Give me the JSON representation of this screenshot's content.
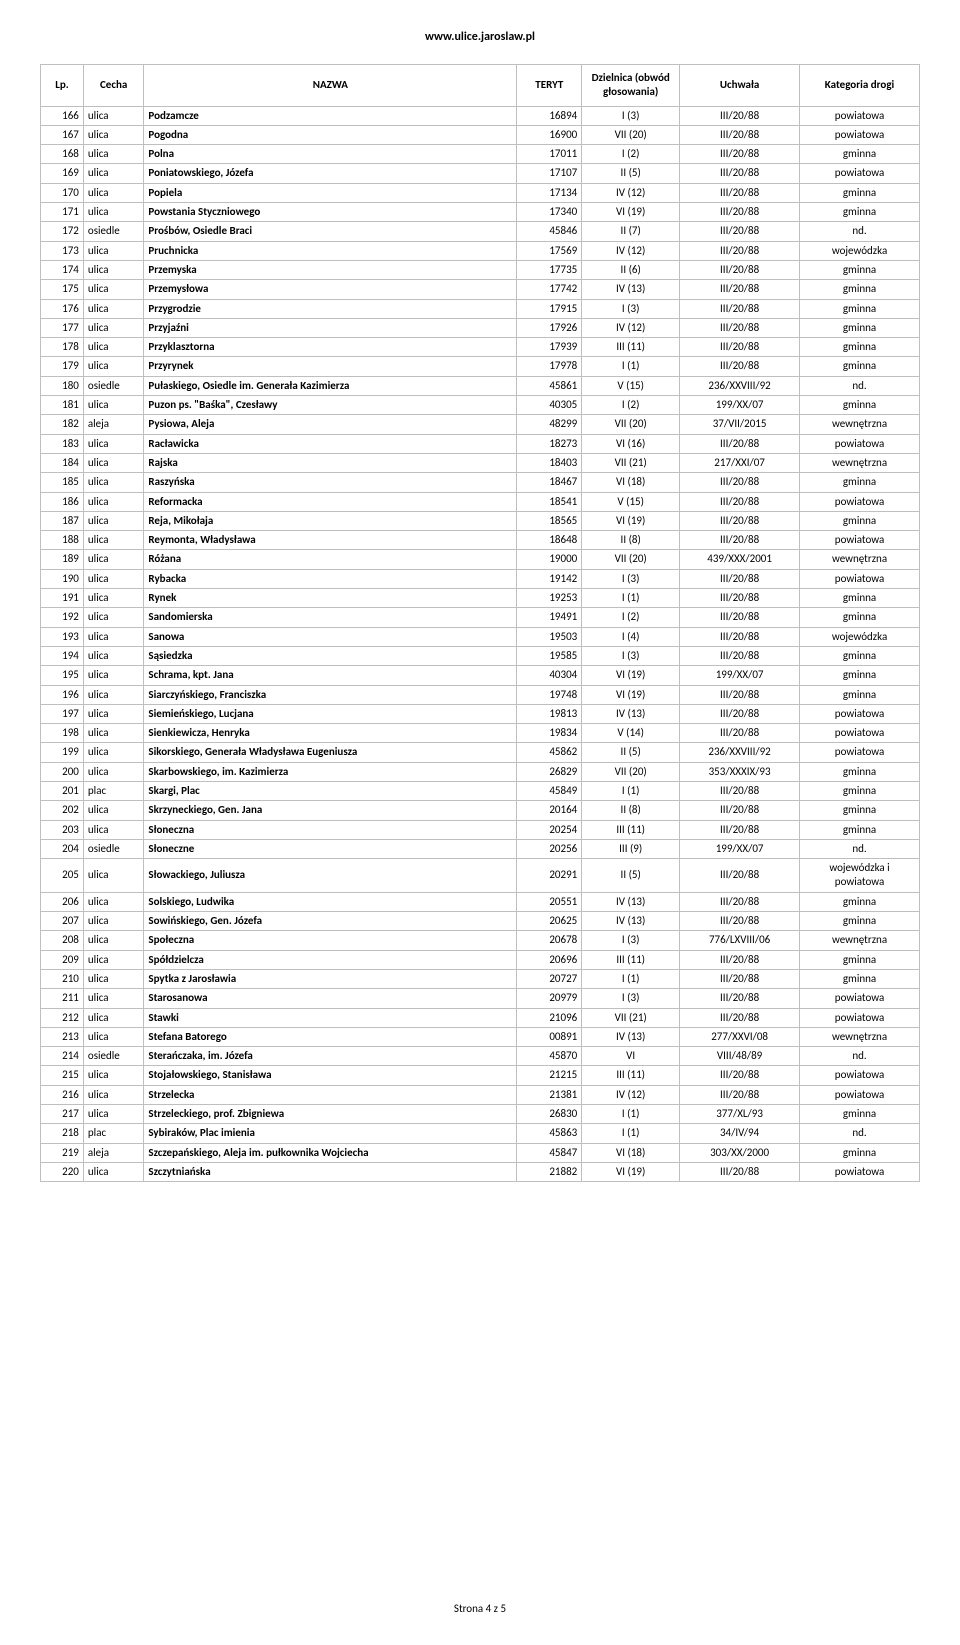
{
  "header_url": "www.ulice.jaroslaw.pl",
  "footer": "Strona 4 z 5",
  "columns": {
    "lp": "Lp.",
    "cecha": "Cecha",
    "nazwa": "NAZWA",
    "teryt": "TERYT",
    "dzielnica": "Dzielnica (obwód głosowania)",
    "uchwala": "Uchwała",
    "kategoria": "Kategoria drogi"
  },
  "rows": [
    {
      "lp": "166",
      "cecha": "ulica",
      "nazwa": "Podzamcze",
      "teryt": "16894",
      "dziel": "I (3)",
      "uchw": "III/20/88",
      "kat": "powiatowa"
    },
    {
      "lp": "167",
      "cecha": "ulica",
      "nazwa": "Pogodna",
      "teryt": "16900",
      "dziel": "VII (20)",
      "uchw": "III/20/88",
      "kat": "powiatowa"
    },
    {
      "lp": "168",
      "cecha": "ulica",
      "nazwa": "Polna",
      "teryt": "17011",
      "dziel": "I (2)",
      "uchw": "III/20/88",
      "kat": "gminna"
    },
    {
      "lp": "169",
      "cecha": "ulica",
      "nazwa": "Poniatowskiego, Józefa",
      "teryt": "17107",
      "dziel": "II (5)",
      "uchw": "III/20/88",
      "kat": "powiatowa"
    },
    {
      "lp": "170",
      "cecha": "ulica",
      "nazwa": "Popiela",
      "teryt": "17134",
      "dziel": "IV (12)",
      "uchw": "III/20/88",
      "kat": "gminna"
    },
    {
      "lp": "171",
      "cecha": "ulica",
      "nazwa": "Powstania Styczniowego",
      "teryt": "17340",
      "dziel": "VI (19)",
      "uchw": "III/20/88",
      "kat": "gminna"
    },
    {
      "lp": "172",
      "cecha": "osiedle",
      "nazwa": "Prośbów, Osiedle Braci",
      "teryt": "45846",
      "dziel": "II (7)",
      "uchw": "III/20/88",
      "kat": "nd."
    },
    {
      "lp": "173",
      "cecha": "ulica",
      "nazwa": "Pruchnicka",
      "teryt": "17569",
      "dziel": "IV (12)",
      "uchw": "III/20/88",
      "kat": "wojewódzka"
    },
    {
      "lp": "174",
      "cecha": "ulica",
      "nazwa": "Przemyska",
      "teryt": "17735",
      "dziel": "II (6)",
      "uchw": "III/20/88",
      "kat": "gminna"
    },
    {
      "lp": "175",
      "cecha": "ulica",
      "nazwa": "Przemysłowa",
      "teryt": "17742",
      "dziel": "IV (13)",
      "uchw": "III/20/88",
      "kat": "gminna"
    },
    {
      "lp": "176",
      "cecha": "ulica",
      "nazwa": "Przygrodzie",
      "teryt": "17915",
      "dziel": "I (3)",
      "uchw": "III/20/88",
      "kat": "gminna"
    },
    {
      "lp": "177",
      "cecha": "ulica",
      "nazwa": "Przyjaźni",
      "teryt": "17926",
      "dziel": "IV (12)",
      "uchw": "III/20/88",
      "kat": "gminna"
    },
    {
      "lp": "178",
      "cecha": "ulica",
      "nazwa": "Przyklasztorna",
      "teryt": "17939",
      "dziel": "III (11)",
      "uchw": "III/20/88",
      "kat": "gminna"
    },
    {
      "lp": "179",
      "cecha": "ulica",
      "nazwa": "Przyrynek",
      "teryt": "17978",
      "dziel": "I (1)",
      "uchw": "III/20/88",
      "kat": "gminna"
    },
    {
      "lp": "180",
      "cecha": "osiedle",
      "nazwa": "Pułaskiego, Osiedle im. Generała Kazimierza",
      "teryt": "45861",
      "dziel": "V (15)",
      "uchw": "236/XXVIII/92",
      "kat": "nd."
    },
    {
      "lp": "181",
      "cecha": "ulica",
      "nazwa": "Puzon ps. \"Baśka\", Czesławy",
      "teryt": "40305",
      "dziel": "I (2)",
      "uchw": "199/XX/07",
      "kat": "gminna"
    },
    {
      "lp": "182",
      "cecha": "aleja",
      "nazwa": "Pysiowa, Aleja",
      "teryt": "48299",
      "dziel": "VII (20)",
      "uchw": "37/VII/2015",
      "kat": "wewnętrzna"
    },
    {
      "lp": "183",
      "cecha": "ulica",
      "nazwa": "Racławicka",
      "teryt": "18273",
      "dziel": "VI (16)",
      "uchw": "III/20/88",
      "kat": "powiatowa"
    },
    {
      "lp": "184",
      "cecha": "ulica",
      "nazwa": "Rajska",
      "teryt": "18403",
      "dziel": "VII (21)",
      "uchw": "217/XXI/07",
      "kat": "wewnętrzna"
    },
    {
      "lp": "185",
      "cecha": "ulica",
      "nazwa": "Raszyńska",
      "teryt": "18467",
      "dziel": "VI (18)",
      "uchw": "III/20/88",
      "kat": "gminna"
    },
    {
      "lp": "186",
      "cecha": "ulica",
      "nazwa": "Reformacka",
      "teryt": "18541",
      "dziel": "V (15)",
      "uchw": "III/20/88",
      "kat": "powiatowa"
    },
    {
      "lp": "187",
      "cecha": "ulica",
      "nazwa": "Reja, Mikołaja",
      "teryt": "18565",
      "dziel": "VI (19)",
      "uchw": "III/20/88",
      "kat": "gminna"
    },
    {
      "lp": "188",
      "cecha": "ulica",
      "nazwa": "Reymonta, Władysława",
      "teryt": "18648",
      "dziel": "II (8)",
      "uchw": "III/20/88",
      "kat": "powiatowa"
    },
    {
      "lp": "189",
      "cecha": "ulica",
      "nazwa": "Różana",
      "teryt": "19000",
      "dziel": "VII (20)",
      "uchw": "439/XXX/2001",
      "kat": "wewnętrzna"
    },
    {
      "lp": "190",
      "cecha": "ulica",
      "nazwa": "Rybacka",
      "teryt": "19142",
      "dziel": "I (3)",
      "uchw": "III/20/88",
      "kat": "powiatowa"
    },
    {
      "lp": "191",
      "cecha": "ulica",
      "nazwa": "Rynek",
      "teryt": "19253",
      "dziel": "I (1)",
      "uchw": "III/20/88",
      "kat": "gminna"
    },
    {
      "lp": "192",
      "cecha": "ulica",
      "nazwa": "Sandomierska",
      "teryt": "19491",
      "dziel": "I (2)",
      "uchw": "III/20/88",
      "kat": "gminna"
    },
    {
      "lp": "193",
      "cecha": "ulica",
      "nazwa": "Sanowa",
      "teryt": "19503",
      "dziel": "I (4)",
      "uchw": "III/20/88",
      "kat": "wojewódzka"
    },
    {
      "lp": "194",
      "cecha": "ulica",
      "nazwa": "Sąsiedzka",
      "teryt": "19585",
      "dziel": "I (3)",
      "uchw": "III/20/88",
      "kat": "gminna"
    },
    {
      "lp": "195",
      "cecha": "ulica",
      "nazwa": "Schrama, kpt. Jana",
      "teryt": "40304",
      "dziel": "VI (19)",
      "uchw": "199/XX/07",
      "kat": "gminna"
    },
    {
      "lp": "196",
      "cecha": "ulica",
      "nazwa": "Siarczyńskiego, Franciszka",
      "teryt": "19748",
      "dziel": "VI (19)",
      "uchw": "III/20/88",
      "kat": "gminna"
    },
    {
      "lp": "197",
      "cecha": "ulica",
      "nazwa": "Siemieńskiego, Lucjana",
      "teryt": "19813",
      "dziel": "IV (13)",
      "uchw": "III/20/88",
      "kat": "powiatowa"
    },
    {
      "lp": "198",
      "cecha": "ulica",
      "nazwa": "Sienkiewicza, Henryka",
      "teryt": "19834",
      "dziel": "V (14)",
      "uchw": "III/20/88",
      "kat": "powiatowa"
    },
    {
      "lp": "199",
      "cecha": "ulica",
      "nazwa": "Sikorskiego, Generała Władysława Eugeniusza",
      "teryt": "45862",
      "dziel": "II (5)",
      "uchw": "236/XXVIII/92",
      "kat": "powiatowa"
    },
    {
      "lp": "200",
      "cecha": "ulica",
      "nazwa": "Skarbowskiego, im. Kazimierza",
      "teryt": "26829",
      "dziel": "VII (20)",
      "uchw": "353/XXXIX/93",
      "kat": "gminna"
    },
    {
      "lp": "201",
      "cecha": "plac",
      "nazwa": "Skargi, Plac",
      "teryt": "45849",
      "dziel": "I (1)",
      "uchw": "III/20/88",
      "kat": "gminna"
    },
    {
      "lp": "202",
      "cecha": "ulica",
      "nazwa": "Skrzyneckiego, Gen. Jana",
      "teryt": "20164",
      "dziel": "II (8)",
      "uchw": "III/20/88",
      "kat": "gminna"
    },
    {
      "lp": "203",
      "cecha": "ulica",
      "nazwa": "Słoneczna",
      "teryt": "20254",
      "dziel": "III (11)",
      "uchw": "III/20/88",
      "kat": "gminna"
    },
    {
      "lp": "204",
      "cecha": "osiedle",
      "nazwa": "Słoneczne",
      "teryt": "20256",
      "dziel": "III (9)",
      "uchw": "199/XX/07",
      "kat": "nd."
    },
    {
      "lp": "205",
      "cecha": "ulica",
      "nazwa": "Słowackiego, Juliusza",
      "teryt": "20291",
      "dziel": "II (5)",
      "uchw": "III/20/88",
      "kat": "wojewódzka i powiatowa"
    },
    {
      "lp": "206",
      "cecha": "ulica",
      "nazwa": "Solskiego, Ludwika",
      "teryt": "20551",
      "dziel": "IV (13)",
      "uchw": "III/20/88",
      "kat": "gminna"
    },
    {
      "lp": "207",
      "cecha": "ulica",
      "nazwa": "Sowińskiego, Gen. Józefa",
      "teryt": "20625",
      "dziel": "IV (13)",
      "uchw": "III/20/88",
      "kat": "gminna"
    },
    {
      "lp": "208",
      "cecha": "ulica",
      "nazwa": "Społeczna",
      "teryt": "20678",
      "dziel": "I (3)",
      "uchw": "776/LXVIII/06",
      "kat": "wewnętrzna"
    },
    {
      "lp": "209",
      "cecha": "ulica",
      "nazwa": "Spółdzielcza",
      "teryt": "20696",
      "dziel": "III (11)",
      "uchw": "III/20/88",
      "kat": "gminna"
    },
    {
      "lp": "210",
      "cecha": "ulica",
      "nazwa": "Spytka z Jarosławia",
      "teryt": "20727",
      "dziel": "I (1)",
      "uchw": "III/20/88",
      "kat": "gminna"
    },
    {
      "lp": "211",
      "cecha": "ulica",
      "nazwa": "Starosanowa",
      "teryt": "20979",
      "dziel": "I (3)",
      "uchw": "III/20/88",
      "kat": "powiatowa"
    },
    {
      "lp": "212",
      "cecha": "ulica",
      "nazwa": "Stawki",
      "teryt": "21096",
      "dziel": "VII (21)",
      "uchw": "III/20/88",
      "kat": "powiatowa"
    },
    {
      "lp": "213",
      "cecha": "ulica",
      "nazwa": "Stefana Batorego",
      "teryt": "00891",
      "dziel": "IV (13)",
      "uchw": "277/XXVI/08",
      "kat": "wewnętrzna"
    },
    {
      "lp": "214",
      "cecha": "osiedle",
      "nazwa": "Sterańczaka, im. Józefa",
      "teryt": "45870",
      "dziel": "VI",
      "uchw": "VIII/48/89",
      "kat": "nd."
    },
    {
      "lp": "215",
      "cecha": "ulica",
      "nazwa": "Stojałowskiego, Stanisława",
      "teryt": "21215",
      "dziel": "III (11)",
      "uchw": "III/20/88",
      "kat": "powiatowa"
    },
    {
      "lp": "216",
      "cecha": "ulica",
      "nazwa": "Strzelecka",
      "teryt": "21381",
      "dziel": "IV (12)",
      "uchw": "III/20/88",
      "kat": "powiatowa"
    },
    {
      "lp": "217",
      "cecha": "ulica",
      "nazwa": "Strzeleckiego, prof. Zbigniewa",
      "teryt": "26830",
      "dziel": "I (1)",
      "uchw": "377/XL/93",
      "kat": "gminna"
    },
    {
      "lp": "218",
      "cecha": "plac",
      "nazwa": "Sybiraków, Plac imienia",
      "teryt": "45863",
      "dziel": "I (1)",
      "uchw": "34/IV/94",
      "kat": "nd."
    },
    {
      "lp": "219",
      "cecha": "aleja",
      "nazwa": "Szczepańskiego, Aleja im. pułkownika Wojciecha",
      "teryt": "45847",
      "dziel": "VI (18)",
      "uchw": "303/XX/2000",
      "kat": "gminna"
    },
    {
      "lp": "220",
      "cecha": "ulica",
      "nazwa": "Szczytniańska",
      "teryt": "21882",
      "dziel": "VI (19)",
      "uchw": "III/20/88",
      "kat": "powiatowa"
    }
  ]
}
